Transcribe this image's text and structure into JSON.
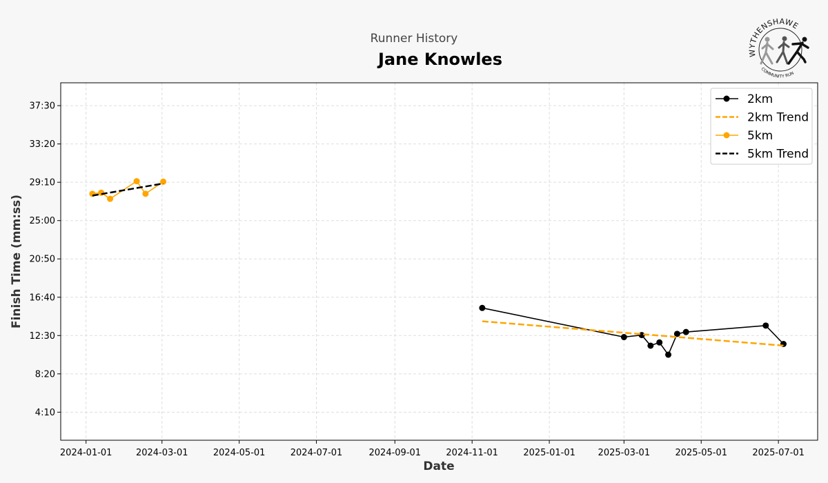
{
  "header": {
    "subtitle": "Runner History",
    "title": "Jane Knowles"
  },
  "logo": {
    "text": "WYTHENSHAWE",
    "subtext": "COMMUNITY RUN"
  },
  "chart_data": {
    "type": "line",
    "title": "Jane Knowles",
    "subtitle": "Runner History",
    "xlabel": "Date",
    "ylabel": "Finish Time (mm:ss)",
    "xlim": [
      "2023-12-12",
      "2025-08-01"
    ],
    "ylim": [
      "1:07",
      "39:59"
    ],
    "x_ticks": [
      "2024-01-01",
      "2024-03-01",
      "2024-05-01",
      "2024-07-01",
      "2024-09-01",
      "2024-11-01",
      "2025-01-01",
      "2025-03-01",
      "2025-05-01",
      "2025-07-01"
    ],
    "y_ticks": [
      "4:10",
      "8:20",
      "12:30",
      "16:40",
      "20:50",
      "25:00",
      "29:10",
      "33:20",
      "37:30"
    ],
    "grid": true,
    "legend_position": "top-right",
    "series": [
      {
        "name": "2km",
        "color": "#000000",
        "style": "solid-markers",
        "points": [
          {
            "x": "2024-11-09",
            "y": "15:30"
          },
          {
            "x": "2025-03-01",
            "y": "12:20"
          },
          {
            "x": "2025-03-15",
            "y": "12:33"
          },
          {
            "x": "2025-03-22",
            "y": "11:24"
          },
          {
            "x": "2025-03-29",
            "y": "11:45"
          },
          {
            "x": "2025-04-05",
            "y": "10:25"
          },
          {
            "x": "2025-04-12",
            "y": "12:41"
          },
          {
            "x": "2025-04-19",
            "y": "12:53"
          },
          {
            "x": "2025-06-21",
            "y": "13:35"
          },
          {
            "x": "2025-07-05",
            "y": "11:35"
          }
        ]
      },
      {
        "name": "2km Trend",
        "color": "#FFA500",
        "style": "dashed",
        "points": [
          {
            "x": "2024-11-09",
            "y": "14:03"
          },
          {
            "x": "2025-07-05",
            "y": "11:24"
          }
        ]
      },
      {
        "name": "5km",
        "color": "#FFA500",
        "style": "solid-markers",
        "points": [
          {
            "x": "2024-01-06",
            "y": "27:55"
          },
          {
            "x": "2024-01-13",
            "y": "28:02"
          },
          {
            "x": "2024-01-20",
            "y": "27:22"
          },
          {
            "x": "2024-02-10",
            "y": "29:17"
          },
          {
            "x": "2024-02-17",
            "y": "27:55"
          },
          {
            "x": "2024-03-02",
            "y": "29:14"
          }
        ]
      },
      {
        "name": "5km Trend",
        "color": "#000000",
        "style": "dashed",
        "points": [
          {
            "x": "2024-01-06",
            "y": "27:43"
          },
          {
            "x": "2024-03-02",
            "y": "29:02"
          }
        ]
      }
    ]
  }
}
